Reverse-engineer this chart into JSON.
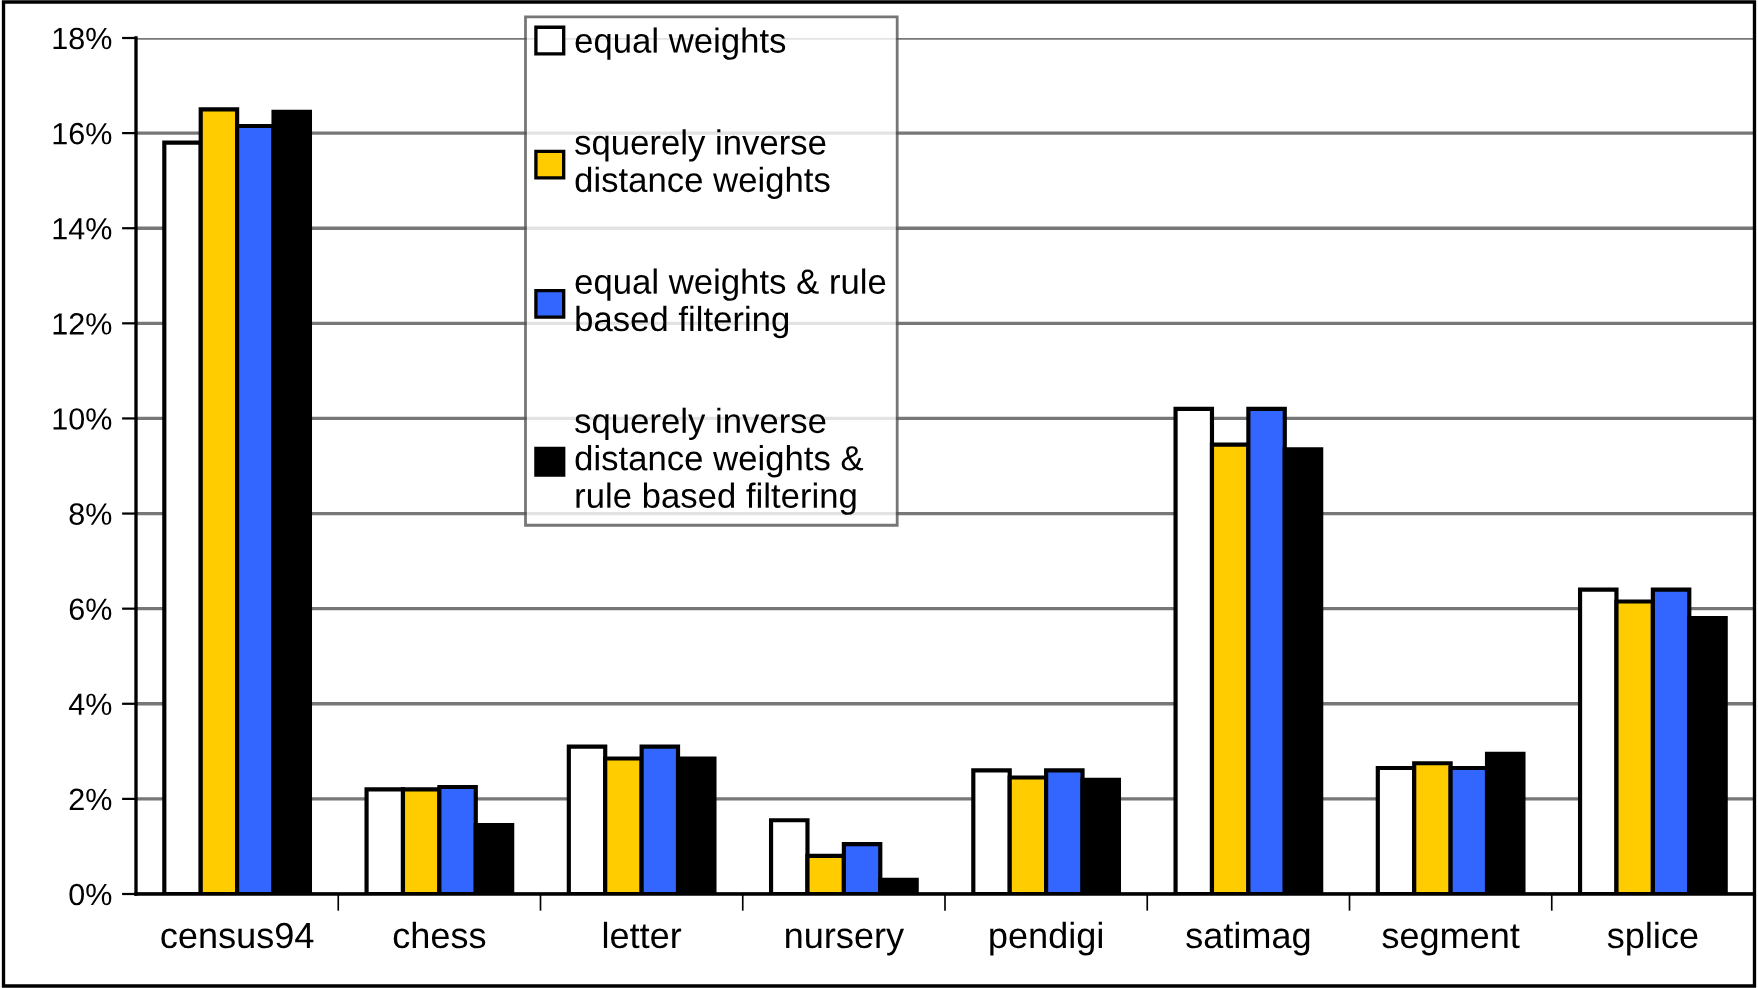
{
  "chart_data": {
    "type": "bar",
    "categories": [
      "census94",
      "chess",
      "letter",
      "nursery",
      "pendigi",
      "satimag",
      "segment",
      "splice"
    ],
    "series": [
      {
        "name": "equal weights",
        "color": "#ffffff",
        "values": [
          15.8,
          2.2,
          3.1,
          1.55,
          2.6,
          10.2,
          2.65,
          6.4
        ]
      },
      {
        "name": "squerely inverse\ndistance weights",
        "color": "#ffcc00",
        "values": [
          16.5,
          2.2,
          2.85,
          0.8,
          2.45,
          9.45,
          2.75,
          6.15
        ]
      },
      {
        "name": "equal weights & rule\nbased filtering",
        "color": "#3366ff",
        "values": [
          16.15,
          2.25,
          3.1,
          1.05,
          2.6,
          10.2,
          2.65,
          6.4
        ]
      },
      {
        "name": "squerely inverse\ndistance weights &\nrule based filtering",
        "color": "#000000",
        "values": [
          16.45,
          1.45,
          2.85,
          0.3,
          2.4,
          9.35,
          2.95,
          5.8
        ]
      }
    ],
    "ylim": [
      0,
      18
    ],
    "yticks": [
      {
        "value": 0,
        "label": "0%"
      },
      {
        "value": 2,
        "label": "2%"
      },
      {
        "value": 4,
        "label": "4%"
      },
      {
        "value": 6,
        "label": "6%"
      },
      {
        "value": 8,
        "label": "8%"
      },
      {
        "value": 10,
        "label": "10%"
      },
      {
        "value": 12,
        "label": "12%"
      },
      {
        "value": 14,
        "label": "14%"
      },
      {
        "value": 16,
        "label": "16%"
      },
      {
        "value": 18,
        "label": "18%"
      }
    ],
    "grid": "y",
    "legend": "top"
  }
}
